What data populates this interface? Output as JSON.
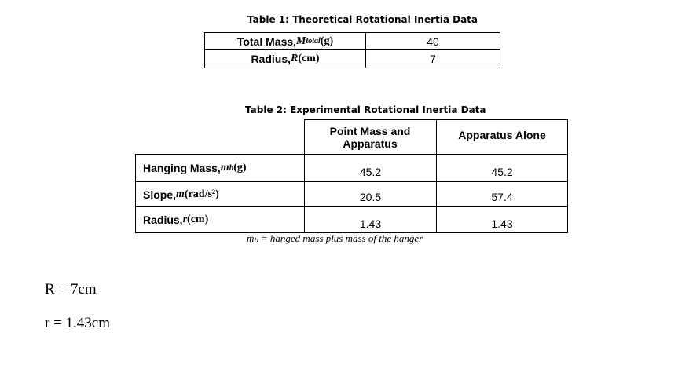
{
  "table1": {
    "caption": "Table 1: Theoretical Rotational Inertia Data",
    "rows": [
      {
        "label": "Total Mass, ",
        "sym": "M",
        "sub": "total",
        "unit": " (g)",
        "value": "40"
      },
      {
        "label": "Radius, ",
        "sym": "R",
        "sub": "",
        "unit": " (cm)",
        "value": "7"
      }
    ]
  },
  "table2": {
    "caption": "Table 2: Experimental Rotational Inertia Data",
    "headers": [
      "Point Mass and Apparatus",
      "Apparatus Alone"
    ],
    "rows": [
      {
        "label": "Hanging Mass, ",
        "sym": "m",
        "sub": "h",
        "sup": "",
        "unit": " (g)",
        "values": [
          "45.2",
          "45.2"
        ]
      },
      {
        "label": "Slope, ",
        "sym": "m",
        "sub": "",
        "sup": "",
        "unit": " (rad/s²)",
        "values": [
          "20.5",
          "57.4"
        ]
      },
      {
        "label": "Radius, ",
        "sym": "r",
        "sub": "",
        "sup": "",
        "unit": " (cm)",
        "values": [
          "1.43",
          "1.43"
        ]
      }
    ],
    "note": "mₕ = hanged mass plus mass of the hanger"
  },
  "handwritten": [
    "R = 7cm",
    "r = 1.43cm"
  ]
}
